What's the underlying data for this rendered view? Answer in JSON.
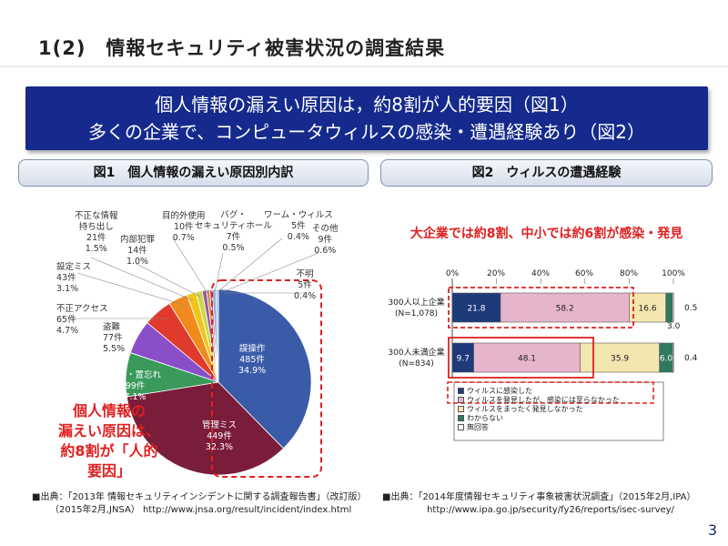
{
  "heading": "1(2)　情報セキュリティ被害状況の調査結果",
  "banner": {
    "line1": "個人情報の漏えい原因は，約8割が人的要因（図1）",
    "line2": "多くの企業で、コンピュータウィルスの感染・遭遇経験あり（図2）"
  },
  "figure1": {
    "title": "図1　個人情報の漏えい原因別内訳",
    "overlay_lines": [
      "個人情報の",
      "漏えい原因は、",
      "約8割が「人的",
      "要因」"
    ],
    "source_line1": "■出典：「2013年 情報セキュリティインシデントに関する調査報告書」（改訂版）",
    "source_line2": "（2015年2月,JNSA）  http://www.jnsa.org/result/incident/index.html"
  },
  "figure2": {
    "title": "図2　ウィルスの遭遇経験",
    "headline": "大企業では約8割、中小では約6割が感染・発見",
    "source_line1": "■出典：「2014年度情報セキュリティ事象被害状況調査」（2015年2月,IPA）",
    "source_line2": "http://www.ipa.go.jp/security/fy26/reports/isec-survey/"
  },
  "page_number": "3",
  "chart_data": [
    {
      "type": "pie",
      "title": "図1　個人情報の漏えい原因別内訳",
      "slices": [
        {
          "name": "誤操作",
          "count": "485件",
          "percent": "34.9%",
          "value": 34.9,
          "color": "#3a5ca8"
        },
        {
          "name": "管理ミス",
          "count": "449件",
          "percent": "32.3%",
          "value": 32.3,
          "color": "#7a1d3a"
        },
        {
          "name": "紛失・置忘れ",
          "count": "99件",
          "percent": "7.1%",
          "value": 7.1,
          "color": "#3a9a5c"
        },
        {
          "name": "盗難",
          "count": "77件",
          "percent": "5.5%",
          "value": 5.5,
          "color": "#8a4fc8"
        },
        {
          "name": "不正アクセス",
          "count": "65件",
          "percent": "4.7%",
          "value": 4.7,
          "color": "#e03a2c"
        },
        {
          "name": "設定ミス",
          "count": "43件",
          "percent": "3.1%",
          "value": 3.1,
          "color": "#f08a1c"
        },
        {
          "name": "不正な情報持ち出し",
          "count": "21件",
          "percent": "1.5%",
          "value": 1.5,
          "color": "#f2c41e"
        },
        {
          "name": "内部犯罪",
          "count": "14件",
          "percent": "1.0%",
          "value": 1.0,
          "color": "#c9d94a"
        },
        {
          "name": "目的外使用",
          "count": "10件",
          "percent": "0.7%",
          "value": 0.7,
          "color": "#9b5a9a"
        },
        {
          "name": "バグ・セキュリティホール",
          "count": "7件",
          "percent": "0.5%",
          "value": 0.5,
          "color": "#c08a4a"
        },
        {
          "name": "ワーム・ウィルス",
          "count": "5件",
          "percent": "0.4%",
          "value": 0.4,
          "color": "#d44a8a"
        },
        {
          "name": "その他",
          "count": "9件",
          "percent": "0.6%",
          "value": 0.6,
          "color": "#8ab0d8"
        },
        {
          "name": "不明",
          "count": "5件",
          "percent": "0.4%",
          "value": 0.4,
          "color": "#9bc4e4"
        }
      ]
    },
    {
      "type": "bar",
      "orientation": "horizontal",
      "stacked": true,
      "title": "図2　ウィルスの遭遇経験",
      "xlim": [
        0,
        100
      ],
      "ticks": [
        "0%",
        "20%",
        "40%",
        "60%",
        "80%",
        "100%"
      ],
      "categories": [
        {
          "label": "300人以上企業",
          "n": "(N=1,078)"
        },
        {
          "label": "300人未満企業",
          "n": "(N=834)"
        }
      ],
      "series": [
        {
          "name": "ウィルスに感染した",
          "color": "#1f3a7a",
          "values": [
            21.8,
            9.7
          ]
        },
        {
          "name": "ウィルスを発見したが、感染には至らなかった",
          "color": "#e6b5cc",
          "values": [
            58.2,
            48.1
          ]
        },
        {
          "name": "ウィルスをまったく発見しなかった",
          "color": "#f3e6b0",
          "values": [
            16.6,
            35.9
          ]
        },
        {
          "name": "わからない",
          "color": "#2e7a5e",
          "values": [
            3.0,
            6.0
          ]
        },
        {
          "name": "無回答",
          "color": "#ffffff",
          "values": [
            0.5,
            0.4
          ]
        }
      ],
      "value_labels": [
        [
          "21.8",
          "58.2",
          "16.6",
          "3.0",
          "0.5"
        ],
        [
          "9.7",
          "48.1",
          "35.9",
          "6.0",
          "0.4"
        ]
      ]
    }
  ]
}
